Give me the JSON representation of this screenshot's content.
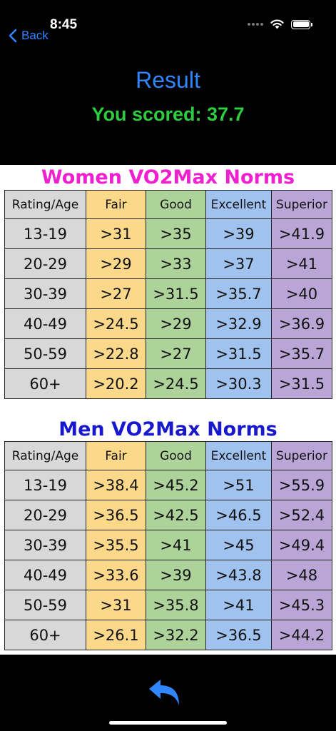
{
  "status_bar": {
    "time": "8:45"
  },
  "nav": {
    "back_label": "Back"
  },
  "header": {
    "title": "Result",
    "score_text": "You scored: 37.7"
  },
  "women": {
    "title": "Women VO2Max Norms",
    "columns": [
      "Rating/Age",
      "Fair",
      "Good",
      "Excellent",
      "Superior"
    ],
    "rows": [
      [
        "13-19",
        ">31",
        ">35",
        ">39",
        ">41.9"
      ],
      [
        "20-29",
        ">29",
        ">33",
        ">37",
        ">41"
      ],
      [
        "30-39",
        ">27",
        ">31.5",
        ">35.7",
        ">40"
      ],
      [
        "40-49",
        ">24.5",
        ">29",
        ">32.9",
        ">36.9"
      ],
      [
        "50-59",
        ">22.8",
        ">27",
        ">31.5",
        ">35.7"
      ],
      [
        "60+",
        ">20.2",
        ">24.5",
        ">30.3",
        ">31.5"
      ]
    ]
  },
  "men": {
    "title": "Men VO2Max Norms",
    "columns": [
      "Rating/Age",
      "Fair",
      "Good",
      "Excellent",
      "Superior"
    ],
    "rows": [
      [
        "13-19",
        ">38.4",
        ">45.2",
        ">51",
        ">55.9"
      ],
      [
        "20-29",
        ">36.5",
        ">42.5",
        ">46.5",
        ">52.4"
      ],
      [
        "30-39",
        ">35.5",
        ">41",
        ">45",
        ">49.4"
      ],
      [
        "40-49",
        ">33.6",
        ">39",
        ">43.8",
        ">48"
      ],
      [
        "50-59",
        ">31",
        ">35.8",
        ">41",
        ">45.3"
      ],
      [
        "60+",
        ">26.1",
        ">32.2",
        ">36.5",
        ">44.2"
      ]
    ]
  },
  "colors": {
    "accent_blue": "#2f86ff",
    "score_green": "#2ecc40",
    "women_title": "#f020d0",
    "men_title": "#1818cc",
    "age_col": "#d8d8d8",
    "fair_col": "#fbd88a",
    "good_col": "#add39a",
    "excellent_col": "#9fc2ee",
    "superior_col": "#b9a6d6"
  },
  "icons": {
    "back": "chevron-left-icon",
    "undo": "undo-arrow-icon",
    "wifi": "wifi-icon",
    "battery": "battery-icon"
  }
}
